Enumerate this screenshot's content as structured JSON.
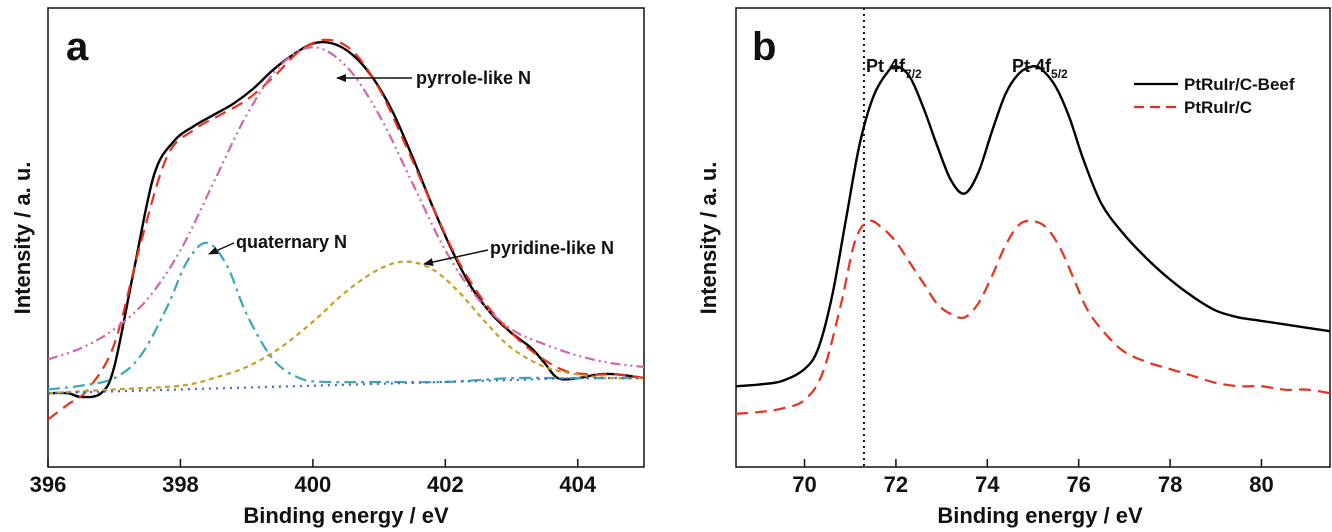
{
  "chart_data": [
    {
      "panel": "a",
      "type": "line",
      "xlabel": "Binding energy / eV",
      "ylabel": "Intensity / a. u.",
      "xlim": [
        396,
        405
      ],
      "ylim": [
        0,
        1.0
      ],
      "xticks": [
        396,
        398,
        400,
        402,
        404
      ],
      "y_tick_labels": false,
      "series": [
        {
          "color": "#000000",
          "dash": "solid",
          "x": [
            396.0,
            396.3,
            396.5,
            396.8,
            397.0,
            397.3,
            397.6,
            397.9,
            398.2,
            398.5,
            398.8,
            399.1,
            399.4,
            399.7,
            400.0,
            400.3,
            400.6,
            400.9,
            401.2,
            401.5,
            401.8,
            402.1,
            402.4,
            402.7,
            403.0,
            403.3,
            403.5,
            403.7,
            404.0,
            404.3,
            404.6,
            405.0
          ],
          "y": [
            0.05,
            0.05,
            0.04,
            0.05,
            0.12,
            0.38,
            0.63,
            0.72,
            0.76,
            0.79,
            0.82,
            0.86,
            0.91,
            0.95,
            0.98,
            0.98,
            0.95,
            0.89,
            0.8,
            0.68,
            0.55,
            0.43,
            0.33,
            0.26,
            0.21,
            0.17,
            0.13,
            0.09,
            0.09,
            0.1,
            0.1,
            0.09
          ]
        },
        {
          "color": "#e8311d",
          "dash": "dashed",
          "x": [
            396.0,
            396.3,
            396.6,
            397.0,
            397.4,
            397.8,
            398.2,
            398.6,
            399.0,
            399.4,
            399.8,
            400.2,
            400.6,
            401.0,
            401.4,
            401.8,
            402.2,
            402.6,
            403.0,
            403.4,
            403.8,
            404.2,
            404.6,
            405.0
          ],
          "y": [
            -0.02,
            0.02,
            0.06,
            0.18,
            0.45,
            0.68,
            0.75,
            0.79,
            0.83,
            0.89,
            0.96,
            0.99,
            0.96,
            0.86,
            0.71,
            0.55,
            0.4,
            0.29,
            0.21,
            0.15,
            0.11,
            0.1,
            0.1,
            0.09
          ]
        },
        {
          "color": "#d066aa",
          "dash": "dash-dot-dot",
          "x": [
            396.0,
            396.5,
            397.0,
            397.5,
            398.0,
            398.5,
            399.0,
            399.5,
            400.0,
            400.5,
            401.0,
            401.5,
            402.0,
            402.5,
            403.0,
            403.5,
            404.0,
            404.5,
            405.0
          ],
          "y": [
            0.14,
            0.17,
            0.22,
            0.3,
            0.43,
            0.61,
            0.79,
            0.92,
            0.97,
            0.92,
            0.79,
            0.61,
            0.43,
            0.3,
            0.22,
            0.18,
            0.15,
            0.13,
            0.12
          ]
        },
        {
          "color": "#3aa6b9",
          "dash": "dash-dot",
          "x": [
            396.0,
            396.5,
            397.0,
            397.4,
            397.8,
            398.1,
            398.4,
            398.7,
            399.0,
            399.4,
            399.8,
            400.2,
            401.0,
            402.0,
            403.0,
            404.0,
            405.0
          ],
          "y": [
            0.06,
            0.07,
            0.09,
            0.15,
            0.28,
            0.4,
            0.45,
            0.39,
            0.26,
            0.14,
            0.09,
            0.08,
            0.08,
            0.08,
            0.09,
            0.09,
            0.09
          ]
        },
        {
          "color": "#c8a022",
          "dash": "dashed-fine",
          "x": [
            396.0,
            397.0,
            398.0,
            398.5,
            399.0,
            399.5,
            400.0,
            400.5,
            401.0,
            401.4,
            401.8,
            402.2,
            402.6,
            403.0,
            403.5,
            404.0,
            404.5,
            405.0
          ],
          "y": [
            0.05,
            0.06,
            0.07,
            0.09,
            0.12,
            0.17,
            0.24,
            0.32,
            0.38,
            0.4,
            0.38,
            0.32,
            0.24,
            0.17,
            0.12,
            0.1,
            0.09,
            0.09
          ]
        },
        {
          "color": "#4466cc",
          "dash": "dotted",
          "x": [
            396.0,
            397.0,
            398.0,
            399.0,
            400.0,
            401.0,
            402.0,
            403.0,
            404.0,
            405.0
          ],
          "y": [
            0.05,
            0.055,
            0.06,
            0.065,
            0.07,
            0.075,
            0.08,
            0.085,
            0.09,
            0.09
          ]
        }
      ],
      "annotations": [
        {
          "text": "pyrrole-like N",
          "target": [
            400.3,
            0.95
          ]
        },
        {
          "text": "quaternary N",
          "target": [
            398.4,
            0.45
          ]
        },
        {
          "text": "pyridine-like N",
          "target": [
            401.4,
            0.4
          ]
        }
      ]
    },
    {
      "panel": "b",
      "type": "line",
      "xlabel": "Binding energy / eV",
      "ylabel": "Intensity / a. u.",
      "xlim": [
        68.5,
        81.5
      ],
      "ylim": [
        0,
        1.0
      ],
      "xticks": [
        70,
        72,
        74,
        76,
        78,
        80
      ],
      "y_tick_labels": false,
      "vline": 71.3,
      "legend": "top-right",
      "series": [
        {
          "name": "PtRuIr/C-Beef",
          "color": "#000000",
          "dash": "solid",
          "x": [
            68.5,
            69.0,
            69.5,
            70.0,
            70.3,
            70.6,
            70.9,
            71.2,
            71.5,
            71.8,
            72.0,
            72.3,
            72.6,
            72.9,
            73.2,
            73.5,
            73.8,
            74.1,
            74.4,
            74.7,
            75.0,
            75.2,
            75.5,
            75.8,
            76.1,
            76.5,
            77.0,
            77.5,
            78.0,
            78.5,
            79.0,
            79.5,
            80.0,
            80.5,
            81.0,
            81.5
          ],
          "y": [
            0.04,
            0.045,
            0.055,
            0.09,
            0.15,
            0.3,
            0.52,
            0.74,
            0.88,
            0.95,
            0.97,
            0.94,
            0.85,
            0.74,
            0.64,
            0.6,
            0.66,
            0.78,
            0.89,
            0.95,
            0.97,
            0.96,
            0.91,
            0.82,
            0.7,
            0.57,
            0.48,
            0.41,
            0.35,
            0.3,
            0.26,
            0.24,
            0.23,
            0.22,
            0.21,
            0.2
          ]
        },
        {
          "name": "PtRuIr/C",
          "color": "#e8311d",
          "dash": "dashed",
          "x": [
            68.5,
            69.0,
            69.5,
            70.0,
            70.4,
            70.8,
            71.1,
            71.4,
            71.7,
            72.0,
            72.3,
            72.6,
            72.9,
            73.2,
            73.5,
            73.8,
            74.1,
            74.4,
            74.7,
            75.0,
            75.3,
            75.6,
            75.9,
            76.2,
            76.6,
            77.0,
            77.5,
            78.0,
            78.5,
            79.0,
            79.5,
            80.0,
            80.5,
            81.0,
            81.5
          ],
          "y": [
            -0.04,
            -0.035,
            -0.025,
            0.0,
            0.08,
            0.28,
            0.46,
            0.52,
            0.5,
            0.46,
            0.4,
            0.34,
            0.28,
            0.25,
            0.24,
            0.28,
            0.36,
            0.45,
            0.51,
            0.52,
            0.5,
            0.44,
            0.35,
            0.26,
            0.19,
            0.14,
            0.11,
            0.09,
            0.07,
            0.05,
            0.04,
            0.04,
            0.03,
            0.03,
            0.02
          ]
        }
      ],
      "annotations": [
        {
          "text": "Pt 4f",
          "sub": "7/2"
        },
        {
          "text": "Pt 4f",
          "sub": "5/2"
        }
      ]
    }
  ],
  "labels": {
    "a": {
      "panel_letter": "a",
      "ylabel": "Intensity / a. u.",
      "xlabel": "Binding energy / eV",
      "pyrrole": "pyrrole-like N",
      "quaternary": "quaternary N",
      "pyridine": "pyridine-like N"
    },
    "b": {
      "panel_letter": "b",
      "ylabel": "Intensity / a. u.",
      "xlabel": "Binding energy / eV",
      "peak1_main": "Pt 4f",
      "peak1_sub": "7/2",
      "peak2_main": "Pt 4f",
      "peak2_sub": "5/2",
      "legend1": "PtRuIr/C-Beef",
      "legend2": "PtRuIr/C"
    }
  }
}
